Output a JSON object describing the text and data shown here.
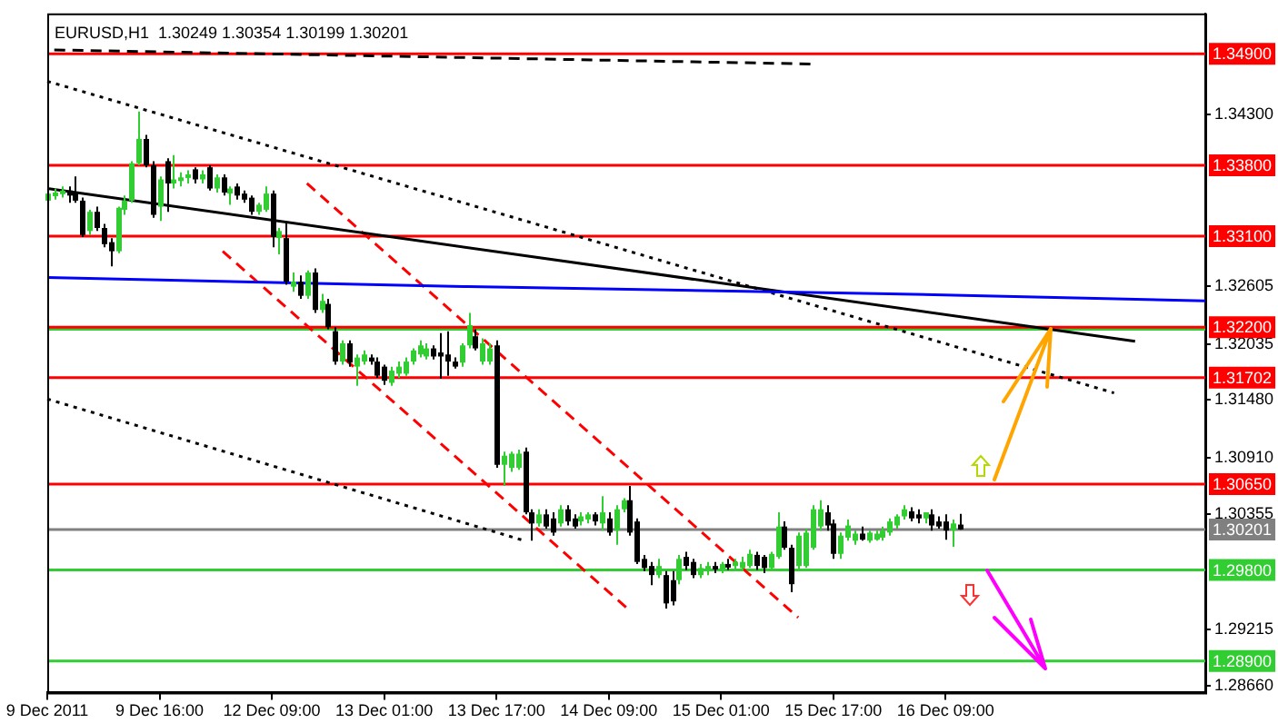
{
  "chart_data": {
    "type": "candlestick",
    "title": "EURUSD,H1  1.30249 1.30354 1.30199 1.30201",
    "categories": [
      "9 Dec 2011",
      null,
      null,
      null,
      null,
      null,
      null,
      null,
      null,
      null,
      null,
      null,
      null,
      null,
      null,
      null,
      "9 Dec 16:00",
      null,
      null,
      null,
      null,
      null,
      null,
      null,
      null,
      null,
      null,
      null,
      null,
      null,
      null,
      null,
      "12 Dec 09:00",
      null,
      null,
      null,
      null,
      null,
      null,
      null,
      null,
      null,
      null,
      null,
      null,
      null,
      null,
      null,
      "13 Dec 01:00",
      null,
      null,
      null,
      null,
      null,
      null,
      null,
      null,
      null,
      null,
      null,
      null,
      null,
      null,
      null,
      "13 Dec 17:00",
      null,
      null,
      null,
      null,
      null,
      null,
      null,
      null,
      null,
      null,
      null,
      null,
      null,
      null,
      null,
      "14 Dec 09:00",
      null,
      null,
      null,
      null,
      null,
      null,
      null,
      null,
      null,
      null,
      null,
      null,
      null,
      null,
      null,
      "15 Dec 01:00",
      null,
      null,
      null,
      null,
      null,
      null,
      null,
      null,
      null,
      null,
      null,
      null,
      null,
      null,
      null,
      "15 Dec 17:00",
      null,
      null,
      null,
      null,
      null,
      null,
      null,
      null,
      null,
      null,
      null,
      null,
      null,
      null,
      null,
      "16 Dec 09:00",
      null,
      null,
      null,
      null,
      null,
      null,
      null,
      null,
      null,
      null,
      null,
      null,
      null,
      null,
      null,
      null,
      null,
      null,
      null,
      null,
      null,
      null,
      null,
      null,
      null,
      null,
      null,
      null,
      null,
      null,
      null,
      null,
      null,
      null,
      null,
      null,
      null
    ],
    "ohlc": [
      [
        1.3345,
        1.3355,
        1.3341,
        1.3352
      ],
      [
        1.335,
        1.3357,
        1.3346,
        1.3353
      ],
      [
        1.3352,
        1.3359,
        1.3348,
        1.3355
      ],
      [
        1.3355,
        1.3359,
        1.3343,
        1.335
      ],
      [
        1.3353,
        1.3369,
        1.3343,
        1.3345
      ],
      [
        1.3345,
        1.3348,
        1.3309,
        1.3311
      ],
      [
        1.3315,
        1.3336,
        1.3311,
        1.3334
      ],
      [
        1.3334,
        1.3339,
        1.3315,
        1.3318
      ],
      [
        1.3318,
        1.3322,
        1.3299,
        1.3302
      ],
      [
        1.3304,
        1.3308,
        1.328,
        1.3295
      ],
      [
        1.3295,
        1.3339,
        1.3293,
        1.3338
      ],
      [
        1.3336,
        1.335,
        1.3331,
        1.3345
      ],
      [
        1.3345,
        1.3384,
        1.3343,
        1.3382
      ],
      [
        1.3382,
        1.3433,
        1.338,
        1.3406
      ],
      [
        1.3406,
        1.341,
        1.3378,
        1.338
      ],
      [
        1.338,
        1.3384,
        1.3328,
        1.3331
      ],
      [
        1.3339,
        1.3369,
        1.3325,
        1.3366
      ],
      [
        1.3384,
        1.3387,
        1.3334,
        1.3362
      ],
      [
        1.3362,
        1.339,
        1.3357,
        1.3366
      ],
      [
        1.3366,
        1.3373,
        1.3359,
        1.3368
      ],
      [
        1.3368,
        1.3375,
        1.3362,
        1.3371
      ],
      [
        1.3376,
        1.3378,
        1.3362,
        1.3366
      ],
      [
        1.3366,
        1.3375,
        1.3362,
        1.3371
      ],
      [
        1.3378,
        1.338,
        1.3355,
        1.3357
      ],
      [
        1.3357,
        1.3371,
        1.3353,
        1.3368
      ],
      [
        1.3368,
        1.3371,
        1.335,
        1.3353
      ],
      [
        1.3352,
        1.3359,
        1.3341,
        1.3357
      ],
      [
        1.3359,
        1.3362,
        1.3346,
        1.335
      ],
      [
        1.3352,
        1.3355,
        1.3343,
        1.3346
      ],
      [
        1.3348,
        1.335,
        1.3331,
        1.3334
      ],
      [
        1.3334,
        1.3343,
        1.3331,
        1.3341
      ],
      [
        1.3336,
        1.3359,
        1.3334,
        1.3352
      ],
      [
        1.3352,
        1.3355,
        1.3299,
        1.3309
      ],
      [
        1.3308,
        1.3318,
        1.3292,
        1.3315
      ],
      [
        1.3308,
        1.3323,
        1.3262,
        1.3265
      ],
      [
        1.326,
        1.3274,
        1.3255,
        1.3265
      ],
      [
        1.3265,
        1.3271,
        1.3248,
        1.3251
      ],
      [
        1.3251,
        1.3276,
        1.3248,
        1.3274
      ],
      [
        1.3274,
        1.3278,
        1.3234,
        1.3237
      ],
      [
        1.3237,
        1.3253,
        1.3234,
        1.3246
      ],
      [
        1.3243,
        1.3248,
        1.3218,
        1.322
      ],
      [
        1.3216,
        1.322,
        1.3183,
        1.3186
      ],
      [
        1.3186,
        1.3207,
        1.3183,
        1.3204
      ],
      [
        1.3204,
        1.3207,
        1.3181,
        1.3185
      ],
      [
        1.3181,
        1.3193,
        1.3162,
        1.319
      ],
      [
        1.3186,
        1.3197,
        1.3183,
        1.3193
      ],
      [
        1.319,
        1.3193,
        1.3183,
        1.3186
      ],
      [
        1.3186,
        1.319,
        1.317,
        1.3172
      ],
      [
        1.3181,
        1.3183,
        1.3163,
        1.3167
      ],
      [
        1.3165,
        1.3181,
        1.3162,
        1.3177
      ],
      [
        1.3174,
        1.3186,
        1.317,
        1.3181
      ],
      [
        1.3174,
        1.319,
        1.3172,
        1.3186
      ],
      [
        1.3186,
        1.3199,
        1.3183,
        1.3197
      ],
      [
        1.3193,
        1.3207,
        1.319,
        1.3202
      ],
      [
        1.3191,
        1.3204,
        1.3188,
        1.3199
      ],
      [
        1.3199,
        1.3202,
        1.3188,
        1.3191
      ],
      [
        1.3195,
        1.3214,
        1.3169,
        1.3191
      ],
      [
        1.3193,
        1.3216,
        1.3172,
        1.3186
      ],
      [
        1.3186,
        1.319,
        1.3179,
        1.3181
      ],
      [
        1.3185,
        1.3204,
        1.3181,
        1.3202
      ],
      [
        1.3202,
        1.3234,
        1.3199,
        1.3222
      ],
      [
        1.3211,
        1.3218,
        1.3197,
        1.3199
      ],
      [
        1.3186,
        1.3209,
        1.3183,
        1.3204
      ],
      [
        1.3186,
        1.3204,
        1.3183,
        1.3199
      ],
      [
        1.3202,
        1.3207,
        1.3081,
        1.3084
      ],
      [
        1.3084,
        1.3097,
        1.3063,
        1.3093
      ],
      [
        1.3081,
        1.3097,
        1.3077,
        1.3095
      ],
      [
        1.3081,
        1.3099,
        1.3079,
        1.3095
      ],
      [
        1.3097,
        1.3101,
        1.3035,
        1.3037
      ],
      [
        1.3037,
        1.304,
        1.3009,
        1.3026
      ],
      [
        1.3026,
        1.304,
        1.3023,
        1.3035
      ],
      [
        1.3035,
        1.304,
        1.3021,
        1.3023
      ],
      [
        1.3031,
        1.3037,
        1.3014,
        1.3017
      ],
      [
        1.3026,
        1.3044,
        1.3023,
        1.304
      ],
      [
        1.304,
        1.3044,
        1.3024,
        1.3028
      ],
      [
        1.3031,
        1.3035,
        1.3021,
        1.3023
      ],
      [
        1.3028,
        1.3037,
        1.3024,
        1.3033
      ],
      [
        1.303,
        1.3037,
        1.3026,
        1.3035
      ],
      [
        1.3035,
        1.3037,
        1.3024,
        1.3028
      ],
      [
        1.3026,
        1.3053,
        1.3019,
        1.3037
      ],
      [
        1.3031,
        1.3037,
        1.3014,
        1.3017
      ],
      [
        1.3019,
        1.3044,
        1.3005,
        1.304
      ],
      [
        1.304,
        1.3051,
        1.3037,
        1.3049
      ],
      [
        1.3049,
        1.3063,
        1.3014,
        1.3017
      ],
      [
        1.3028,
        1.3031,
        1.2986,
        1.2988
      ],
      [
        1.2991,
        1.2995,
        1.2979,
        1.2982
      ],
      [
        1.2984,
        1.2988,
        1.2965,
        1.2975
      ],
      [
        1.2975,
        1.2991,
        1.2972,
        1.2984
      ],
      [
        1.2975,
        1.2979,
        1.2942,
        1.2947
      ],
      [
        1.297,
        1.2979,
        1.2945,
        1.2949
      ],
      [
        1.297,
        1.2995,
        1.2966,
        1.2991
      ],
      [
        1.2993,
        1.2998,
        1.298,
        1.2984
      ],
      [
        1.2988,
        1.2991,
        1.2972,
        1.2975
      ],
      [
        1.2975,
        1.2986,
        1.2972,
        1.2982
      ],
      [
        1.298,
        1.2988,
        1.2975,
        1.2984
      ],
      [
        1.2984,
        1.2988,
        1.2977,
        1.2981
      ],
      [
        1.2981,
        1.2988,
        1.2977,
        1.2986
      ],
      [
        1.2986,
        1.2991,
        1.298,
        1.2984
      ],
      [
        1.2984,
        1.2991,
        1.2979,
        1.2988
      ],
      [
        1.2982,
        1.2993,
        1.2979,
        1.2988
      ],
      [
        1.2984,
        1.3,
        1.2982,
        1.2996
      ],
      [
        1.2995,
        1.2998,
        1.298,
        1.2984
      ],
      [
        1.2993,
        1.2995,
        1.2977,
        1.2982
      ],
      [
        1.2982,
        1.2998,
        1.2979,
        1.2996
      ],
      [
        1.2993,
        1.3037,
        1.2991,
        1.3023
      ],
      [
        1.3023,
        1.3028,
        1.3,
        1.3002
      ],
      [
        1.3002,
        1.3005,
        1.2958,
        1.2966
      ],
      [
        1.2984,
        1.3017,
        1.298,
        1.3014
      ],
      [
        1.2984,
        1.3021,
        1.2982,
        1.3017
      ],
      [
        1.3002,
        1.3044,
        1.3,
        1.304
      ],
      [
        1.3023,
        1.3049,
        1.3019,
        1.304
      ],
      [
        1.3037,
        1.3044,
        1.3019,
        1.3024
      ],
      [
        1.3026,
        1.303,
        1.2991,
        1.2996
      ],
      [
        1.2996,
        1.3017,
        1.2991,
        1.3014
      ],
      [
        1.3012,
        1.303,
        1.3009,
        1.3024
      ],
      [
        1.3009,
        1.3019,
        1.3005,
        1.3016
      ],
      [
        1.3016,
        1.3023,
        1.3009,
        1.301
      ],
      [
        1.3009,
        1.3019,
        1.3007,
        1.3017
      ],
      [
        1.301,
        1.3019,
        1.3009,
        1.3016
      ],
      [
        1.3012,
        1.3023,
        1.3009,
        1.3019
      ],
      [
        1.3017,
        1.3031,
        1.3014,
        1.3028
      ],
      [
        1.3024,
        1.3035,
        1.3021,
        1.3033
      ],
      [
        1.3033,
        1.3044,
        1.303,
        1.304
      ],
      [
        1.3038,
        1.3042,
        1.3028,
        1.3031
      ],
      [
        1.3035,
        1.304,
        1.3026,
        1.3031
      ],
      [
        1.3031,
        1.3037,
        1.3026,
        1.3037
      ],
      [
        1.3035,
        1.304,
        1.3019,
        1.3024
      ],
      [
        1.3028,
        1.3033,
        1.3021,
        1.3023
      ],
      [
        1.3028,
        1.3035,
        1.301,
        1.3019
      ],
      [
        1.3019,
        1.303,
        1.3003,
        1.3026
      ],
      [
        1.30249,
        1.30354,
        1.30199,
        1.30201
      ],
      null,
      null,
      null,
      null,
      null,
      null,
      null,
      null,
      null,
      null,
      null,
      null,
      null,
      null,
      null,
      null,
      null,
      null,
      null,
      null,
      null,
      null,
      null,
      null,
      null,
      null,
      null,
      null,
      null,
      null,
      null,
      null,
      null,
      null,
      null
    ],
    "colors": [
      "#32cd32",
      "#32cd32",
      "#32cd32",
      "#000000",
      "#000000",
      "#000000",
      "#32cd32",
      "#000000",
      "#000000",
      "#000000",
      "#32cd32",
      "#32cd32",
      "#32cd32",
      "#32cd32",
      "#000000",
      "#000000",
      "#32cd32",
      "#000000",
      "#32cd32",
      "#32cd32",
      "#32cd32",
      "#000000",
      "#32cd32",
      "#000000",
      "#32cd32",
      "#000000",
      "#32cd32",
      "#000000",
      "#000000",
      "#000000",
      "#32cd32",
      "#32cd32",
      "#000000",
      "#32cd32",
      "#000000",
      "#32cd32",
      "#000000",
      "#32cd32",
      "#000000",
      "#32cd32",
      "#000000",
      "#000000",
      "#32cd32",
      "#000000",
      "#32cd32",
      "#32cd32",
      "#000000",
      "#000000",
      "#000000",
      "#32cd32",
      "#32cd32",
      "#32cd32",
      "#32cd32",
      "#32cd32",
      "#32cd32",
      "#000000",
      "#000000",
      "#000000",
      "#000000",
      "#32cd32",
      "#32cd32",
      "#000000",
      "#32cd32",
      "#32cd32",
      "#000000",
      "#32cd32",
      "#32cd32",
      "#32cd32",
      "#000000",
      "#000000",
      "#32cd32",
      "#000000",
      "#000000",
      "#32cd32",
      "#000000",
      "#000000",
      "#32cd32",
      "#32cd32",
      "#000000",
      "#32cd32",
      "#000000",
      "#32cd32",
      "#32cd32",
      "#000000",
      "#000000",
      "#000000",
      "#000000",
      "#32cd32",
      "#000000",
      "#000000",
      "#32cd32",
      "#000000",
      "#000000",
      "#32cd32",
      "#32cd32",
      "#000000",
      "#32cd32",
      "#000000",
      "#32cd32",
      "#32cd32",
      "#32cd32",
      "#000000",
      "#000000",
      "#32cd32",
      "#32cd32",
      "#000000",
      "#000000",
      "#32cd32",
      "#32cd32",
      "#32cd32",
      "#32cd32",
      "#000000",
      "#000000",
      "#32cd32",
      "#32cd32",
      "#32cd32",
      "#000000",
      "#32cd32",
      "#32cd32",
      "#32cd32",
      "#32cd32",
      "#32cd32",
      "#32cd32",
      "#000000",
      "#000000",
      "#32cd32",
      "#000000",
      "#000000",
      "#000000",
      "#32cd32",
      "#000000",
      null,
      null,
      null,
      null,
      null,
      null,
      null,
      null,
      null,
      null,
      null,
      null,
      null,
      null,
      null,
      null,
      null,
      null,
      null,
      null,
      null,
      null,
      null,
      null,
      null,
      null,
      null,
      null,
      null,
      null,
      null,
      null,
      null,
      null,
      null
    ],
    "series": [
      {
        "type": "line",
        "color": "#0000ff",
        "line_style": "solid",
        "values": [
          1.3269,
          null,
          null,
          null,
          null,
          null,
          null,
          null,
          null,
          null,
          null,
          null,
          null,
          null,
          null,
          null,
          null,
          null,
          null,
          null,
          null,
          null,
          null,
          null,
          null,
          null,
          null,
          null,
          null,
          null,
          null,
          null,
          null,
          null,
          null,
          null,
          null,
          null,
          null,
          null,
          null,
          null,
          null,
          null,
          null,
          null,
          null,
          null,
          null,
          null,
          null,
          null,
          null,
          null,
          null,
          null,
          null,
          null,
          null,
          null,
          1.326,
          null,
          null,
          null,
          null,
          null,
          null,
          null,
          null,
          null,
          null,
          null,
          null,
          null,
          null,
          null,
          null,
          null,
          null,
          null,
          null,
          null,
          null,
          null,
          null,
          null,
          null,
          null,
          null,
          null,
          null,
          null,
          null,
          null,
          null,
          null,
          null,
          null,
          null,
          null,
          null,
          null,
          null,
          null,
          null,
          null,
          null,
          null,
          null,
          null,
          null,
          null,
          null,
          null,
          null,
          null,
          null,
          null,
          null,
          null,
          1.3253,
          null,
          null,
          null,
          null,
          null,
          null,
          null,
          null,
          null,
          null,
          null,
          null,
          null,
          null,
          null,
          null,
          null,
          null,
          null,
          null,
          null,
          null,
          null,
          null,
          null,
          null,
          null,
          null,
          null,
          null,
          null,
          null,
          null,
          null,
          null,
          null,
          null,
          null,
          null,
          null,
          null,
          null,
          null,
          null,
          1.3246
        ]
      },
      {
        "type": "line",
        "color": "#000000",
        "line_style": "solid",
        "values": [
          1.3357,
          null,
          null,
          null,
          null,
          null,
          null,
          null,
          null,
          null,
          null,
          null,
          null,
          null,
          null,
          null,
          null,
          null,
          null,
          null,
          null,
          null,
          null,
          null,
          null,
          null,
          null,
          null,
          null,
          null,
          null,
          null,
          null,
          null,
          null,
          null,
          null,
          null,
          null,
          null,
          null,
          null,
          null,
          null,
          null,
          null,
          null,
          null,
          null,
          null,
          null,
          null,
          null,
          null,
          null,
          null,
          null,
          null,
          null,
          null,
          null,
          null,
          null,
          null,
          null,
          null,
          null,
          null,
          null,
          null,
          null,
          null,
          null,
          null,
          null,
          null,
          null,
          null,
          null,
          null,
          null,
          null,
          null,
          null,
          null,
          null,
          null,
          null,
          null,
          null,
          null,
          null,
          null,
          null,
          null,
          null,
          null,
          null,
          null,
          null,
          null,
          null,
          null,
          null,
          null,
          null,
          null,
          null,
          null,
          null,
          null,
          null,
          null,
          null,
          null,
          null,
          null,
          null,
          null,
          null,
          null,
          null,
          null,
          null,
          null,
          null,
          null,
          null,
          null,
          null,
          null,
          null,
          null,
          null,
          null,
          null,
          null,
          null,
          null,
          null,
          null,
          null,
          null,
          null,
          null,
          null,
          null,
          null,
          null,
          null,
          null,
          null,
          null,
          null,
          null,
          1.3206,
          null,
          null,
          null,
          null,
          null,
          null,
          null,
          null,
          null,
          null
        ]
      },
      {
        "type": "line",
        "color": "#000000",
        "line_style": "dotted",
        "values": [
          1.3463,
          null,
          null,
          null,
          null,
          null,
          null,
          null,
          null,
          null,
          null,
          null,
          null,
          null,
          null,
          null,
          null,
          null,
          null,
          null,
          null,
          null,
          null,
          null,
          null,
          null,
          null,
          null,
          null,
          null,
          null,
          null,
          null,
          null,
          null,
          null,
          null,
          null,
          null,
          null,
          null,
          null,
          null,
          null,
          null,
          null,
          null,
          null,
          null,
          null,
          null,
          null,
          null,
          null,
          null,
          null,
          null,
          null,
          null,
          null,
          null,
          null,
          null,
          null,
          null,
          null,
          null,
          null,
          null,
          null,
          null,
          null,
          null,
          null,
          null,
          null,
          null,
          null,
          null,
          null,
          null,
          null,
          null,
          null,
          null,
          null,
          null,
          null,
          null,
          null,
          null,
          null,
          null,
          null,
          null,
          null,
          null,
          null,
          null,
          null,
          null,
          null,
          null,
          null,
          null,
          null,
          null,
          null,
          null,
          null,
          null,
          null,
          null,
          null,
          null,
          null,
          null,
          null,
          null,
          null,
          null,
          null,
          null,
          null,
          null,
          null,
          null,
          null,
          null,
          null,
          null,
          null,
          null,
          null,
          null,
          null,
          null,
          null,
          null,
          null,
          null,
          null,
          null,
          null,
          null,
          null,
          null,
          null,
          null,
          null,
          null,
          null,
          1.3155,
          null,
          null,
          null,
          null,
          null,
          null,
          null,
          null,
          null,
          null,
          null,
          null,
          null
        ]
      },
      {
        "type": "line",
        "color": "#000000",
        "line_style": "dotted",
        "values": [
          1.3149,
          null,
          null,
          null,
          null,
          null,
          null,
          null,
          null,
          null,
          null,
          null,
          null,
          null,
          null,
          null,
          null,
          null,
          null,
          null,
          null,
          null,
          null,
          null,
          null,
          null,
          null,
          null,
          null,
          null,
          null,
          null,
          null,
          null,
          null,
          null,
          null,
          null,
          null,
          null,
          null,
          null,
          null,
          null,
          null,
          null,
          null,
          null,
          null,
          null,
          null,
          null,
          null,
          null,
          null,
          null,
          null,
          null,
          null,
          null,
          null,
          null,
          null,
          null,
          null,
          null,
          null,
          null,
          1.3009,
          null,
          null,
          null,
          null,
          null,
          null,
          null,
          null,
          null,
          null,
          null,
          null,
          null,
          null,
          null,
          null,
          null,
          null,
          null,
          null,
          null,
          null,
          null,
          null,
          null,
          null,
          null,
          null,
          null,
          null,
          null,
          null,
          null,
          null,
          null,
          null,
          null,
          null,
          null,
          null,
          null,
          null,
          null,
          null,
          null,
          null,
          null,
          null,
          null,
          null,
          null,
          null,
          null,
          null,
          null,
          null,
          null,
          null,
          null,
          null,
          null,
          null,
          null,
          null,
          null,
          null,
          null,
          null,
          null,
          null,
          null,
          null,
          null,
          null,
          null,
          null,
          null,
          null,
          null,
          null,
          null,
          null,
          null,
          null,
          null,
          null,
          null,
          null,
          null,
          null,
          null,
          null,
          null,
          null,
          null,
          null,
          null
        ]
      },
      {
        "type": "line",
        "color": "#000000",
        "line_style": "dashed",
        "values": [
          null,
          1.3494,
          null,
          null,
          null,
          null,
          null,
          null,
          null,
          null,
          null,
          null,
          null,
          null,
          null,
          null,
          null,
          null,
          null,
          null,
          null,
          null,
          null,
          null,
          null,
          null,
          null,
          null,
          null,
          null,
          null,
          null,
          null,
          null,
          null,
          null,
          null,
          null,
          null,
          null,
          null,
          null,
          null,
          null,
          null,
          null,
          null,
          null,
          null,
          null,
          null,
          null,
          null,
          null,
          null,
          null,
          null,
          null,
          null,
          null,
          null,
          null,
          null,
          null,
          null,
          null,
          null,
          null,
          null,
          null,
          null,
          null,
          null,
          null,
          null,
          null,
          null,
          null,
          null,
          null,
          null,
          null,
          null,
          null,
          null,
          null,
          null,
          null,
          null,
          null,
          null,
          null,
          null,
          null,
          null,
          null,
          null,
          null,
          null,
          null,
          null,
          null,
          null,
          null,
          null,
          null,
          null,
          null,
          null,
          1.348,
          null,
          null,
          null,
          null,
          null,
          null,
          null,
          null,
          null,
          null,
          null,
          null,
          null,
          null,
          null,
          null,
          null,
          null,
          null,
          null,
          null,
          null,
          null,
          null,
          null,
          null,
          null,
          null,
          null,
          null,
          null,
          null,
          null,
          null,
          null,
          null,
          null,
          null,
          null,
          null,
          null,
          null,
          null,
          null,
          null,
          null,
          null,
          null,
          null,
          null,
          null,
          null,
          null,
          null,
          null,
          null
        ]
      },
      {
        "type": "line",
        "color": "#ff0000",
        "line_style": "dashed",
        "values": [
          null,
          null,
          null,
          null,
          null,
          null,
          null,
          null,
          null,
          null,
          null,
          null,
          null,
          null,
          null,
          null,
          null,
          null,
          null,
          null,
          null,
          null,
          null,
          null,
          null,
          null,
          null,
          null,
          null,
          null,
          null,
          null,
          null,
          null,
          null,
          null,
          null,
          1.3362,
          null,
          null,
          null,
          null,
          null,
          null,
          null,
          null,
          null,
          null,
          null,
          null,
          null,
          null,
          null,
          null,
          null,
          null,
          null,
          null,
          null,
          null,
          null,
          null,
          null,
          null,
          null,
          null,
          null,
          null,
          null,
          null,
          null,
          null,
          null,
          null,
          null,
          null,
          null,
          null,
          null,
          null,
          null,
          null,
          null,
          null,
          null,
          null,
          null,
          null,
          null,
          null,
          null,
          null,
          null,
          null,
          null,
          null,
          null,
          null,
          null,
          null,
          null,
          null,
          null,
          null,
          null,
          null,
          null,
          1.2933,
          null,
          null,
          null,
          null,
          null,
          null,
          null,
          null,
          null,
          null,
          null,
          null,
          null,
          null,
          null,
          null,
          null,
          null,
          null,
          null,
          null,
          null,
          null,
          null,
          null,
          null,
          null,
          null,
          null,
          null,
          null,
          null,
          null,
          null,
          null,
          null,
          null,
          null,
          null,
          null,
          null,
          null,
          null,
          null,
          null,
          null,
          null,
          null,
          null,
          null,
          null,
          null,
          null,
          null,
          null,
          null,
          null,
          null
        ]
      },
      {
        "type": "line",
        "color": "#ff0000",
        "line_style": "dashed",
        "values": [
          null,
          null,
          null,
          null,
          null,
          null,
          null,
          null,
          null,
          null,
          null,
          null,
          null,
          null,
          null,
          null,
          null,
          null,
          null,
          null,
          null,
          null,
          null,
          null,
          null,
          1.3295,
          null,
          null,
          null,
          null,
          null,
          null,
          null,
          null,
          null,
          null,
          null,
          null,
          null,
          null,
          null,
          null,
          null,
          null,
          null,
          null,
          null,
          null,
          null,
          null,
          null,
          null,
          null,
          null,
          null,
          null,
          null,
          null,
          null,
          null,
          null,
          null,
          null,
          null,
          null,
          null,
          null,
          null,
          null,
          null,
          null,
          null,
          null,
          null,
          null,
          null,
          null,
          null,
          null,
          null,
          null,
          null,
          null,
          1.294,
          null,
          null,
          null,
          null,
          null,
          null,
          null,
          null,
          null,
          null,
          null,
          null,
          null,
          null,
          null,
          null,
          null,
          null,
          null,
          null,
          null,
          null,
          null,
          null,
          null,
          null,
          null,
          null,
          null,
          null,
          null,
          null,
          null,
          null,
          null,
          null,
          null,
          null,
          null,
          null,
          null,
          null,
          null,
          null,
          null,
          null,
          null,
          null,
          null,
          null,
          null,
          null,
          null,
          null,
          null,
          null,
          null,
          null,
          null,
          null,
          null,
          null,
          null,
          null,
          null,
          null,
          null,
          null,
          null,
          null,
          null,
          null,
          null,
          null,
          null,
          null,
          null,
          null,
          null,
          null,
          null,
          null
        ]
      }
    ],
    "ylim": [
      1.2859,
      1.353
    ],
    "yticks": [
      {
        "value": 1.343,
        "label": "1.34300"
      },
      {
        "value": 1.32605,
        "label": "1.32605"
      },
      {
        "value": 1.32035,
        "label": "1.32035"
      },
      {
        "value": 1.3148,
        "label": "1.31480"
      },
      {
        "value": 1.3091,
        "label": "1.30910"
      },
      {
        "value": 1.30355,
        "label": "1.30355"
      },
      {
        "value": 1.29215,
        "label": "1.29215"
      },
      {
        "value": 1.2866,
        "label": "1.28660"
      }
    ],
    "ref_lines": [
      {
        "axis": "y",
        "value": 1.349,
        "label": "1.34900",
        "color": "#ff0000"
      },
      {
        "axis": "y",
        "value": 1.338,
        "label": "1.33800",
        "color": "#ff0000"
      },
      {
        "axis": "y",
        "value": 1.331,
        "label": "1.33100",
        "color": "#ff0000"
      },
      {
        "axis": "y",
        "value": 1.3218,
        "color": "#32cd32"
      },
      {
        "axis": "y",
        "value": 1.322,
        "label": "1.32200",
        "color": "#ff0000"
      },
      {
        "axis": "y",
        "value": 1.31702,
        "label": "1.31702",
        "color": "#ff0000"
      },
      {
        "axis": "y",
        "value": 1.3065,
        "label": "1.30650",
        "color": "#ff0000"
      },
      {
        "axis": "y",
        "value": 1.30201,
        "label": "1.30201",
        "color": "#808080"
      },
      {
        "axis": "y",
        "value": 1.298,
        "label": "1.29800",
        "color": "#32cd32"
      },
      {
        "axis": "y",
        "value": 1.289,
        "label": "1.28900",
        "color": "#32cd32"
      }
    ],
    "grid": false,
    "legend": false,
    "marker": "none"
  }
}
